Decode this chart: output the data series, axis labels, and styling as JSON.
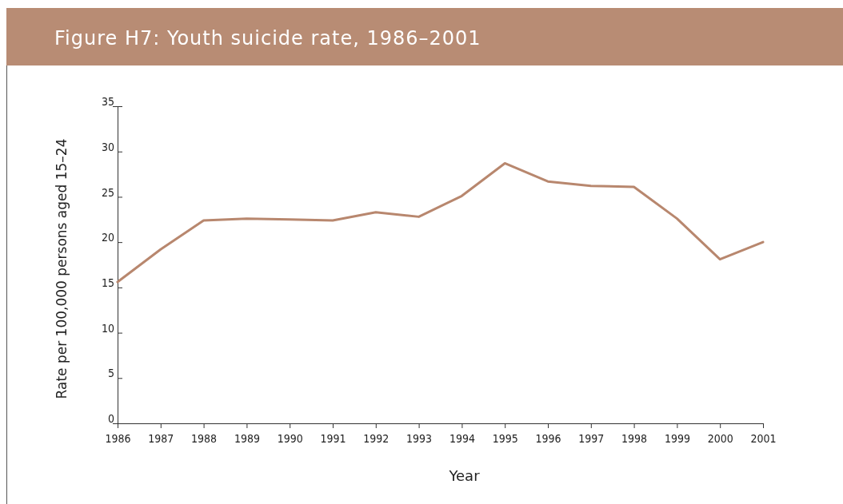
{
  "chart_data": {
    "type": "line",
    "title": "Figure H7: Youth suicide rate, 1986–2001",
    "xlabel": "Year",
    "ylabel": "Rate per 100,000 persons aged 15–24",
    "x": [
      1986,
      1987,
      1988,
      1989,
      1990,
      1991,
      1992,
      1993,
      1994,
      1995,
      1996,
      1997,
      1998,
      1999,
      2000,
      2001
    ],
    "series": [
      {
        "color": "#b8876e",
        "values": [
          15.6,
          19.2,
          22.4,
          22.6,
          22.5,
          22.4,
          23.3,
          22.8,
          25.1,
          28.7,
          26.7,
          26.2,
          26.1,
          22.6,
          18.1,
          20.0
        ]
      }
    ],
    "xlim": [
      1986,
      2001
    ],
    "xticks": [
      1986,
      1987,
      1988,
      1989,
      1990,
      1991,
      1992,
      1993,
      1994,
      1995,
      1996,
      1997,
      1998,
      1999,
      2000,
      2001
    ],
    "ylim": [
      0,
      35
    ],
    "yticks": [
      0,
      5,
      10,
      15,
      20,
      25,
      30,
      35
    ],
    "grid": false,
    "marker": "none",
    "line_style": "solid"
  }
}
